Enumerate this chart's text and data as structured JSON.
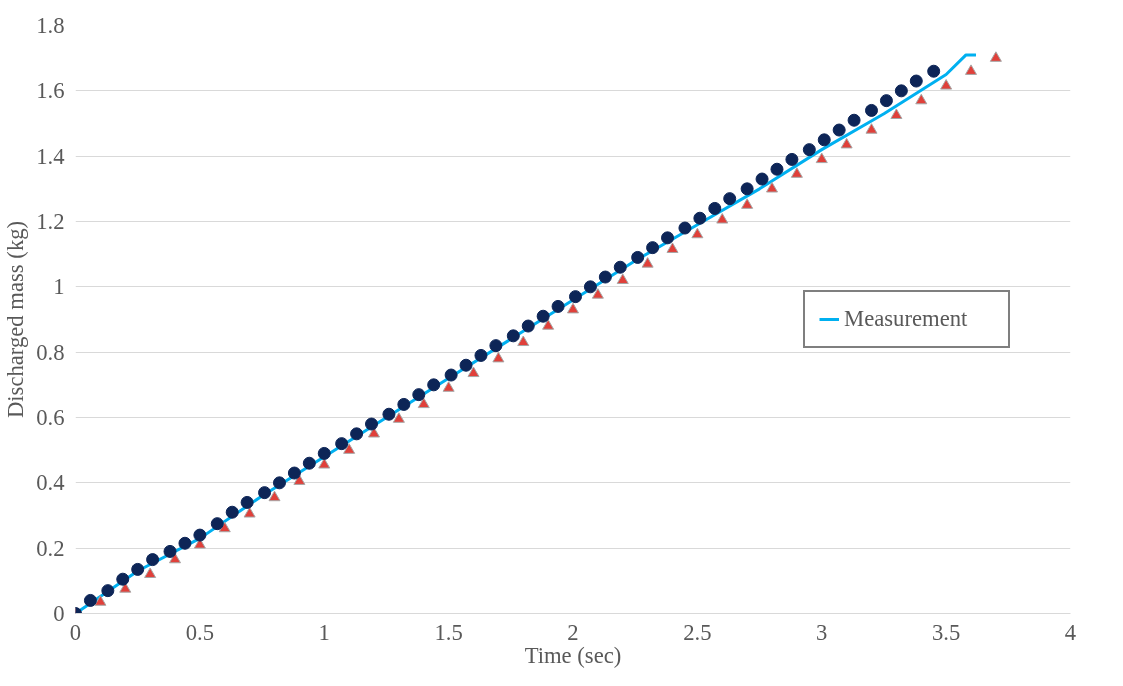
{
  "chart_data": {
    "type": "line",
    "xlabel": "Time (sec)",
    "ylabel": "Discharged mass (kg)",
    "xlim": [
      0,
      4
    ],
    "xticks": [
      0,
      0.5,
      1,
      1.5,
      2,
      2.5,
      3,
      3.5,
      4
    ],
    "ylim": [
      0,
      1.8
    ],
    "yticks": [
      0,
      0.2,
      0.4,
      0.6,
      0.8,
      1,
      1.2,
      1.4,
      1.6,
      1.8
    ],
    "grid": "y",
    "legend": "right",
    "series": [
      {
        "name": "Measurement",
        "color": "#00b0f0",
        "marker": "none",
        "x": [
          0,
          0.25,
          0.5,
          0.75,
          1,
          1.25,
          1.5,
          1.75,
          2,
          2.25,
          2.5,
          2.75,
          3,
          3.25,
          3.5,
          3.58,
          3.62
        ],
        "values": [
          0,
          0.13,
          0.23,
          0.36,
          0.48,
          0.6,
          0.72,
          0.84,
          0.96,
          1.08,
          1.19,
          1.3,
          1.42,
          1.53,
          1.65,
          1.71,
          1.71
        ]
      },
      {
        "type": "scatter",
        "color": "#e0403a",
        "marker": "triangle",
        "x": [
          0,
          0.1,
          0.2,
          0.3,
          0.4,
          0.5,
          0.6,
          0.7,
          0.8,
          0.9,
          1.0,
          1.1,
          1.2,
          1.3,
          1.4,
          1.5,
          1.6,
          1.7,
          1.8,
          1.9,
          2.0,
          2.1,
          2.2,
          2.3,
          2.4,
          2.5,
          2.6,
          2.7,
          2.8,
          2.9,
          3.0,
          3.1,
          3.2,
          3.3,
          3.4,
          3.5,
          3.6,
          3.7
        ],
        "values": [
          0,
          0.035,
          0.075,
          0.12,
          0.165,
          0.21,
          0.26,
          0.305,
          0.355,
          0.405,
          0.455,
          0.5,
          0.55,
          0.595,
          0.64,
          0.69,
          0.735,
          0.78,
          0.83,
          0.88,
          0.93,
          0.975,
          1.02,
          1.07,
          1.115,
          1.16,
          1.205,
          1.25,
          1.3,
          1.345,
          1.39,
          1.435,
          1.48,
          1.525,
          1.57,
          1.615,
          1.66,
          1.7
        ]
      },
      {
        "type": "scatter",
        "color": "#0d2557",
        "marker": "circle",
        "x": [
          0,
          0.06,
          0.13,
          0.19,
          0.25,
          0.31,
          0.38,
          0.44,
          0.5,
          0.57,
          0.63,
          0.69,
          0.76,
          0.82,
          0.88,
          0.94,
          1.0,
          1.07,
          1.13,
          1.19,
          1.26,
          1.32,
          1.38,
          1.44,
          1.51,
          1.57,
          1.63,
          1.69,
          1.76,
          1.82,
          1.88,
          1.94,
          2.01,
          2.07,
          2.13,
          2.19,
          2.26,
          2.32,
          2.38,
          2.45,
          2.51,
          2.57,
          2.63,
          2.7,
          2.76,
          2.82,
          2.88,
          2.95,
          3.01,
          3.07,
          3.13,
          3.2,
          3.26,
          3.32,
          3.38,
          3.45
        ],
        "values": [
          0,
          0.04,
          0.07,
          0.105,
          0.135,
          0.165,
          0.19,
          0.215,
          0.24,
          0.275,
          0.31,
          0.34,
          0.37,
          0.4,
          0.43,
          0.46,
          0.49,
          0.52,
          0.55,
          0.58,
          0.61,
          0.64,
          0.67,
          0.7,
          0.73,
          0.76,
          0.79,
          0.82,
          0.85,
          0.88,
          0.91,
          0.94,
          0.97,
          1.0,
          1.03,
          1.06,
          1.09,
          1.12,
          1.15,
          1.18,
          1.21,
          1.24,
          1.27,
          1.3,
          1.33,
          1.36,
          1.39,
          1.42,
          1.45,
          1.48,
          1.51,
          1.54,
          1.57,
          1.6,
          1.63,
          1.66
        ]
      }
    ]
  }
}
